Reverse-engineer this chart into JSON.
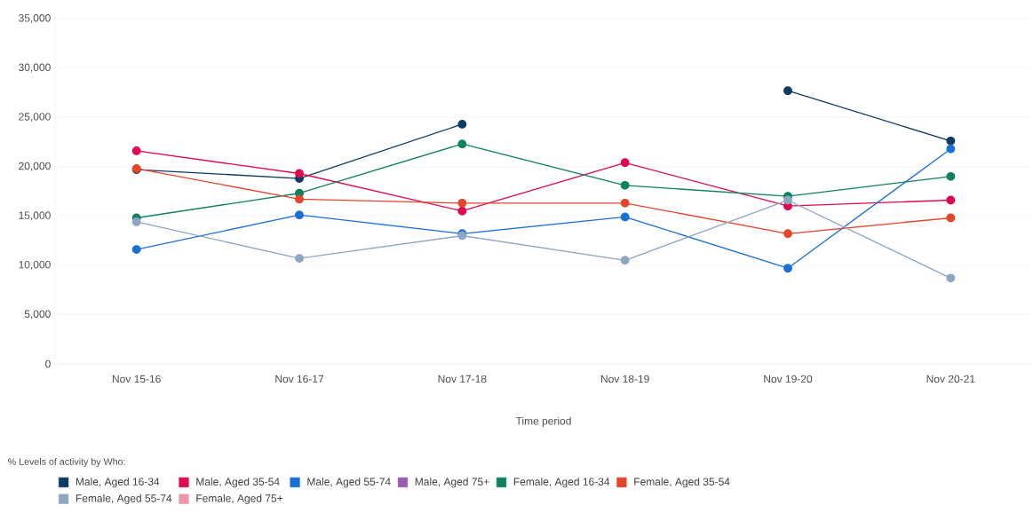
{
  "chart_data": {
    "type": "line",
    "xlabel": "Time period",
    "legend_title": "% Levels of activity by Who:",
    "categories": [
      "Nov 15-16",
      "Nov 16-17",
      "Nov 17-18",
      "Nov 18-19",
      "Nov 19-20",
      "Nov 20-21"
    ],
    "series": [
      {
        "name": "Male, Aged 16-34",
        "color": "#0b3a62",
        "values": [
          19700,
          18800,
          24300,
          null,
          27700,
          22600
        ]
      },
      {
        "name": "Male, Aged 35-54",
        "color": "#e0084f",
        "values": [
          21600,
          19300,
          15500,
          20400,
          16000,
          16600
        ]
      },
      {
        "name": "Male, Aged 55-74",
        "color": "#1a6fd6",
        "values": [
          11600,
          15100,
          13200,
          14900,
          9700,
          21800
        ]
      },
      {
        "name": "Male, Aged 75+",
        "color": "#9a5bb0",
        "values": [
          null,
          null,
          null,
          null,
          null,
          null
        ]
      },
      {
        "name": "Female, Aged 16-34",
        "color": "#0f8060",
        "values": [
          14800,
          17300,
          22300,
          18100,
          17000,
          19000
        ]
      },
      {
        "name": "Female, Aged 35-54",
        "color": "#e5452a",
        "values": [
          19800,
          16700,
          16300,
          16300,
          13200,
          14800
        ]
      },
      {
        "name": "Female, Aged 55-74",
        "color": "#8ea6c2",
        "values": [
          14400,
          10700,
          13000,
          10500,
          16600,
          8700
        ]
      },
      {
        "name": "Female, Aged 75+",
        "color": "#f095a8",
        "values": [
          null,
          null,
          null,
          null,
          null,
          null
        ]
      }
    ],
    "ylim": [
      0,
      35000
    ],
    "yticks": [
      {
        "value": 0,
        "label": "0"
      },
      {
        "value": 5000,
        "label": "5,000"
      },
      {
        "value": 10000,
        "label": "10,000"
      },
      {
        "value": 15000,
        "label": "15,000"
      },
      {
        "value": 20000,
        "label": "20,000"
      },
      {
        "value": 25000,
        "label": "25,000"
      },
      {
        "value": 30000,
        "label": "30,000"
      },
      {
        "value": 35000,
        "label": "35,000"
      }
    ],
    "grid": "y",
    "legend": "bottom",
    "marker": "circle",
    "line_style": "solid"
  }
}
